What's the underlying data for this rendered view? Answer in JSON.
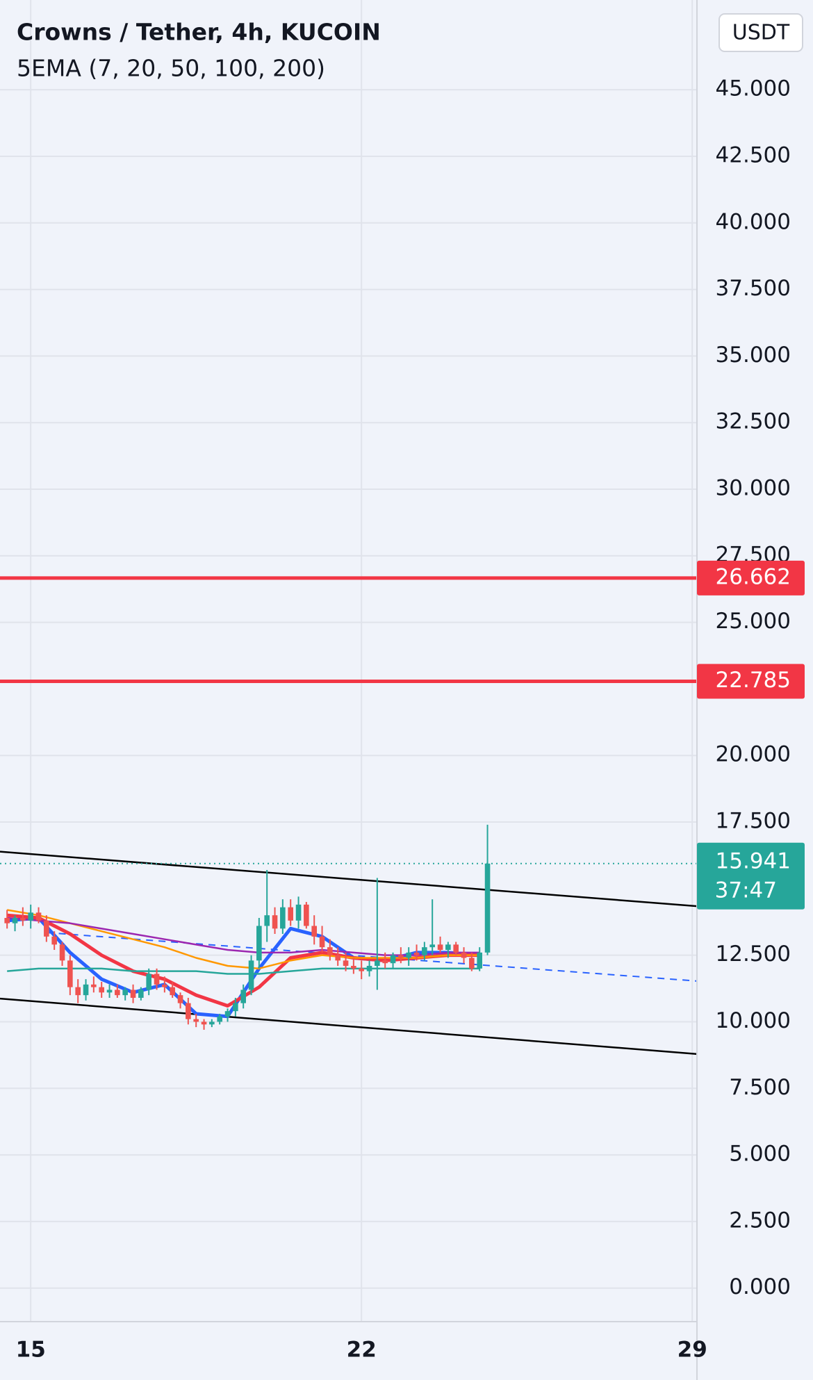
{
  "chart_data": {
    "type": "candlestick",
    "title": "Crowns / Tether, 4h, KUCOIN",
    "subtitle": "5EMA (7, 20, 50, 100, 200)",
    "currency": "USDT",
    "up_color": "#26a69a",
    "down_color": "#ef5350",
    "x": [
      14.5,
      14.667,
      14.833,
      15,
      15.167,
      15.333,
      15.5,
      15.667,
      15.833,
      16,
      16.167,
      16.333,
      16.5,
      16.667,
      16.833,
      17,
      17.167,
      17.333,
      17.5,
      17.667,
      17.833,
      18,
      18.167,
      18.333,
      18.5,
      18.667,
      18.833,
      19,
      19.167,
      19.333,
      19.5,
      19.667,
      19.833,
      20,
      20.167,
      20.333,
      20.5,
      20.667,
      20.833,
      21,
      21.167,
      21.333,
      21.5,
      21.667,
      21.833,
      22,
      22.167,
      22.333,
      22.5,
      22.667,
      22.833,
      23,
      23.167,
      23.333,
      23.5,
      23.667,
      23.833,
      24,
      24.167,
      24.333,
      24.5,
      24.667
    ],
    "open": [
      13.9,
      13.7,
      13.9,
      13.8,
      14.1,
      13.8,
      13.2,
      12.9,
      12.3,
      11.3,
      11.0,
      11.4,
      11.3,
      11.1,
      11.2,
      11.0,
      11.2,
      10.9,
      11.2,
      11.8,
      11.4,
      11.3,
      11.0,
      10.7,
      10.1,
      10.0,
      9.9,
      10.0,
      10.2,
      10.4,
      10.7,
      11.2,
      12.3,
      13.6,
      14.0,
      13.5,
      14.3,
      13.8,
      14.4,
      13.6,
      13.2,
      12.8,
      12.5,
      12.3,
      12.1,
      12.0,
      11.9,
      12.1,
      12.3,
      12.2,
      12.5,
      12.4,
      12.6,
      12.5,
      12.8,
      12.9,
      12.7,
      12.9,
      12.6,
      12.4,
      12.0,
      12.6
    ],
    "high": [
      14.2,
      14.0,
      14.3,
      14.4,
      14.3,
      14.0,
      13.4,
      13.0,
      12.5,
      11.6,
      11.6,
      11.7,
      11.5,
      11.4,
      11.4,
      11.3,
      11.4,
      11.3,
      12.0,
      12.0,
      11.7,
      11.5,
      11.1,
      10.9,
      10.3,
      10.1,
      10.1,
      10.3,
      10.5,
      10.9,
      11.4,
      12.5,
      13.9,
      15.7,
      14.3,
      14.6,
      14.6,
      14.7,
      14.5,
      14.0,
      13.6,
      13.1,
      12.8,
      12.6,
      12.4,
      12.3,
      12.3,
      15.4,
      12.6,
      12.6,
      12.8,
      12.8,
      12.9,
      13.0,
      14.6,
      13.2,
      13.0,
      13.0,
      12.8,
      12.6,
      12.8,
      17.4
    ],
    "low": [
      13.5,
      13.4,
      13.6,
      13.5,
      13.7,
      13.0,
      12.7,
      12.1,
      11.0,
      10.7,
      10.8,
      11.1,
      10.9,
      10.9,
      10.9,
      10.8,
      10.7,
      10.8,
      11.0,
      11.2,
      11.1,
      10.9,
      10.5,
      9.9,
      9.8,
      9.7,
      9.8,
      9.9,
      10.0,
      10.2,
      10.5,
      11.0,
      12.0,
      13.0,
      13.3,
      13.3,
      13.6,
      13.5,
      13.5,
      12.9,
      12.6,
      12.3,
      12.1,
      11.9,
      11.8,
      11.6,
      11.7,
      11.2,
      12.0,
      12.0,
      12.2,
      12.1,
      12.3,
      12.3,
      12.5,
      12.6,
      12.4,
      12.5,
      12.2,
      11.9,
      11.9,
      12.5
    ],
    "close": [
      13.7,
      13.9,
      13.8,
      14.1,
      13.8,
      13.2,
      12.9,
      12.3,
      11.3,
      11.0,
      11.4,
      11.3,
      11.1,
      11.2,
      11.0,
      11.2,
      10.9,
      11.2,
      11.8,
      11.4,
      11.3,
      11.0,
      10.7,
      10.1,
      10.0,
      9.9,
      10.0,
      10.2,
      10.4,
      10.7,
      11.2,
      12.3,
      13.6,
      14.0,
      13.5,
      14.3,
      13.8,
      14.4,
      13.6,
      13.2,
      12.8,
      12.5,
      12.3,
      12.1,
      12.0,
      11.9,
      12.1,
      12.3,
      12.2,
      12.5,
      12.4,
      12.6,
      12.5,
      12.8,
      12.9,
      12.7,
      12.9,
      12.6,
      12.4,
      12.0,
      12.6,
      15.941
    ],
    "indicators": {
      "x": [
        14.5,
        15.167,
        15.833,
        16.5,
        17.167,
        17.833,
        18.5,
        19.167,
        19.833,
        20.5,
        21.167,
        21.833,
        22.5,
        23.167,
        23.833,
        24.5
      ],
      "series": [
        {
          "color": "#2962ff",
          "values": [
            13.8,
            13.9,
            12.6,
            11.6,
            11.1,
            11.4,
            10.3,
            10.2,
            12.0,
            13.5,
            13.2,
            12.4,
            12.3,
            12.6,
            12.6,
            12.5
          ]
        },
        {
          "color": "#f23645",
          "values": [
            14.0,
            13.9,
            13.3,
            12.5,
            11.9,
            11.6,
            11.0,
            10.6,
            11.3,
            12.4,
            12.6,
            12.4,
            12.3,
            12.4,
            12.5,
            12.5
          ]
        },
        {
          "color": "#ff9800",
          "values": [
            14.2,
            14.0,
            13.7,
            13.4,
            13.1,
            12.8,
            12.4,
            12.1,
            12.0,
            12.3,
            12.5,
            12.4,
            12.4,
            12.4,
            12.5,
            12.5
          ]
        },
        {
          "color": "#9c27b0",
          "values": [
            13.9,
            13.8,
            13.7,
            13.5,
            13.3,
            13.1,
            12.9,
            12.7,
            12.6,
            12.6,
            12.7,
            12.6,
            12.5,
            12.5,
            12.6,
            12.6
          ]
        },
        {
          "color": "#26a69a",
          "values": [
            11.9,
            12.0,
            12.0,
            12.0,
            11.9,
            11.9,
            11.9,
            11.8,
            11.8,
            11.9,
            12.0,
            12.0,
            12.0,
            12.0,
            12.0,
            12.0
          ]
        }
      ]
    },
    "trend_lines": [
      {
        "color": "#000000",
        "dashed": false,
        "x": [
          14.35,
          29.1
        ],
        "values": [
          16.39,
          14.34
        ]
      },
      {
        "color": "#000000",
        "dashed": false,
        "x": [
          14.35,
          29.1
        ],
        "values": [
          10.87,
          8.79
        ]
      },
      {
        "color": "#2962ff",
        "dashed": true,
        "x": [
          15.33,
          29.1
        ],
        "values": [
          13.35,
          11.53
        ]
      }
    ],
    "levels": [
      {
        "value": 26.662,
        "color": "#f23645"
      },
      {
        "value": 22.785,
        "color": "#f23645"
      }
    ],
    "last_price": {
      "value": 15.941,
      "countdown": "37:47",
      "color": "#26a69a"
    },
    "xlim": [
      14.35,
      29.1
    ],
    "ylim": [
      -1.26,
      48.37
    ],
    "xticks": [
      15,
      22,
      29
    ],
    "yticks": [
      {
        "value": 0,
        "label": "0.000"
      },
      {
        "value": 2.5,
        "label": "2.500"
      },
      {
        "value": 5,
        "label": "5.000"
      },
      {
        "value": 7.5,
        "label": "7.500"
      },
      {
        "value": 10,
        "label": "10.000"
      },
      {
        "value": 12.5,
        "label": "12.500"
      },
      {
        "value": 17.5,
        "label": "17.500"
      },
      {
        "value": 20,
        "label": "20.000"
      },
      {
        "value": 25,
        "label": "25.000"
      },
      {
        "value": 27.5,
        "label": "27.500"
      },
      {
        "value": 30,
        "label": "30.000"
      },
      {
        "value": 32.5,
        "label": "32.500"
      },
      {
        "value": 35,
        "label": "35.000"
      },
      {
        "value": 37.5,
        "label": "37.500"
      },
      {
        "value": 40,
        "label": "40.000"
      },
      {
        "value": 42.5,
        "label": "42.500"
      },
      {
        "value": 45,
        "label": "45.000"
      }
    ],
    "grid": true
  }
}
